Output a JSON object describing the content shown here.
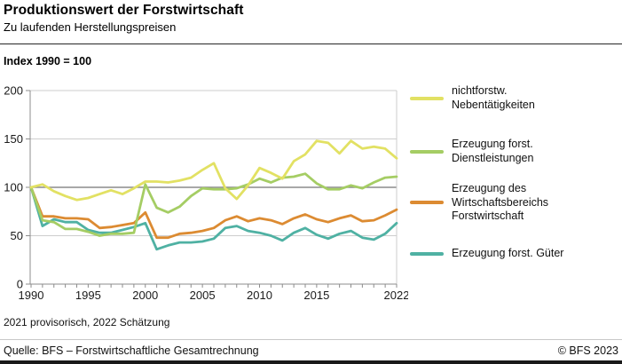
{
  "header": {
    "title": "Produktionswert der Forstwirtschaft",
    "subtitle": "Zu laufenden Herstellungspreisen"
  },
  "chart_data": {
    "type": "line",
    "title": "Produktionswert der Forstwirtschaft",
    "subtitle": "Zu laufenden Herstellungspreisen",
    "index_label": "Index 1990 = 100",
    "x": [
      1990,
      1991,
      1992,
      1993,
      1994,
      1995,
      1996,
      1997,
      1998,
      1999,
      2000,
      2001,
      2002,
      2003,
      2004,
      2005,
      2006,
      2007,
      2008,
      2009,
      2010,
      2011,
      2012,
      2013,
      2014,
      2015,
      2016,
      2017,
      2018,
      2019,
      2020,
      2021,
      2022
    ],
    "x_tick_labels": [
      1990,
      1995,
      2000,
      2005,
      2010,
      2015,
      2022
    ],
    "ylim": [
      0,
      200
    ],
    "y_ticks": [
      0,
      50,
      100,
      150,
      200
    ],
    "baseline_y": 100,
    "grid": "horizontal",
    "legend_position": "right",
    "series": [
      {
        "id": "nichtforstw-nebentaetigkeiten",
        "name": "nichtforstw. Nebentätigkeiten",
        "legend_lines": [
          "nichtforstw.",
          "Nebentätigkeiten"
        ],
        "color": "#e2e163",
        "values": [
          100,
          103,
          96,
          91,
          87,
          89,
          93,
          97,
          93,
          99,
          106,
          106,
          105,
          107,
          110,
          118,
          125,
          99,
          88,
          102,
          120,
          115,
          109,
          127,
          134,
          148,
          146,
          135,
          148,
          140,
          142,
          140,
          130
        ]
      },
      {
        "id": "erzeugung-forst-dienstleistungen",
        "name": "Erzeugung forst. Dienstleistungen",
        "legend_lines": [
          "Erzeugung forst.",
          "Dienstleistungen"
        ],
        "color": "#a5cd64",
        "values": [
          100,
          66,
          64,
          57,
          57,
          54,
          50,
          52,
          52,
          53,
          103,
          79,
          74,
          80,
          91,
          99,
          98,
          98,
          99,
          103,
          109,
          105,
          110,
          111,
          114,
          104,
          98,
          98,
          102,
          99,
          105,
          110,
          111
        ]
      },
      {
        "id": "erzeugung-wirtschaftsbereich-forstwirtschaft",
        "name": "Erzeugung des Wirtschaftsbereichs Forstwirtschaft",
        "legend_lines": [
          "Erzeugung des",
          "Wirtschaftsbereichs",
          "Forstwirtschaft"
        ],
        "color": "#dc8b32",
        "values": [
          100,
          70,
          70,
          68,
          68,
          67,
          58,
          59,
          61,
          63,
          74,
          48,
          48,
          52,
          53,
          55,
          58,
          66,
          70,
          65,
          68,
          66,
          62,
          68,
          72,
          67,
          64,
          68,
          71,
          65,
          66,
          71,
          77
        ]
      },
      {
        "id": "erzeugung-forst-gueter",
        "name": "Erzeugung forst. Güter",
        "legend_lines": [
          "Erzeugung forst. Güter"
        ],
        "color": "#4fb1a3",
        "values": [
          100,
          60,
          67,
          64,
          64,
          56,
          53,
          53,
          56,
          59,
          63,
          36,
          40,
          43,
          43,
          44,
          47,
          58,
          60,
          55,
          53,
          50,
          45,
          53,
          58,
          51,
          47,
          52,
          55,
          48,
          46,
          52,
          63
        ]
      }
    ]
  },
  "footer": {
    "footnote": "2021 provisorisch, 2022 Schätzung",
    "source": "Quelle: BFS – Forstwirtschaftliche Gesamtrechnung",
    "copyright": "© BFS 2023"
  }
}
